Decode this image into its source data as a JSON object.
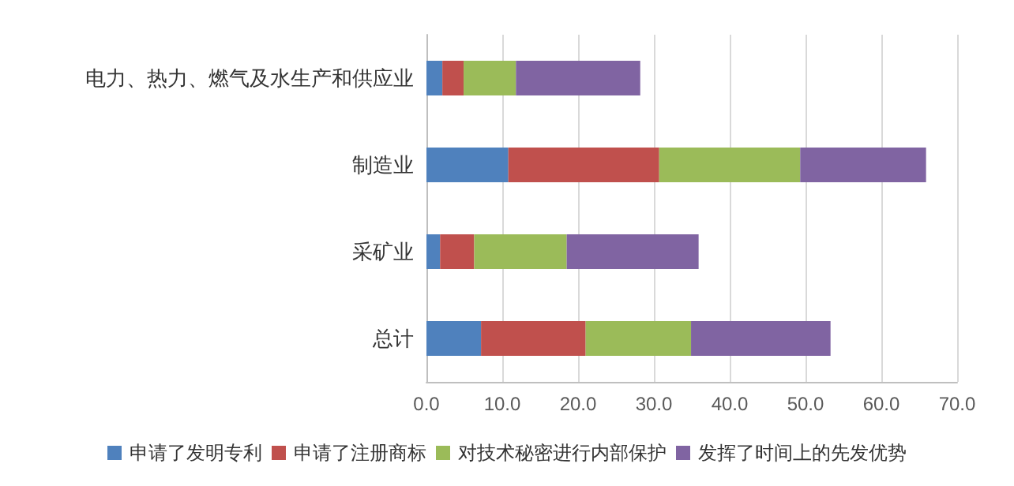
{
  "chart_data": {
    "type": "bar",
    "orientation": "horizontal",
    "stacked": true,
    "categories": [
      "电力、热力、燃气及水生产和供应业",
      "制造业",
      "采矿业",
      "总计"
    ],
    "series": [
      {
        "name": "申请了发明专利",
        "color": "#4f81bd",
        "values": [
          2.1,
          10.8,
          1.8,
          7.2
        ]
      },
      {
        "name": "申请了注册商标",
        "color": "#c0504d",
        "values": [
          2.8,
          19.9,
          4.5,
          13.8
        ]
      },
      {
        "name": "对技术秘密进行内部保护",
        "color": "#9bbb59",
        "values": [
          6.9,
          18.6,
          12.2,
          13.9
        ]
      },
      {
        "name": "发挥了时间上的先发优势",
        "color": "#8064a2",
        "values": [
          16.4,
          16.6,
          17.4,
          18.4
        ]
      }
    ],
    "xlim": [
      0,
      70
    ],
    "xticks": [
      {
        "value": 0,
        "label": "0.0"
      },
      {
        "value": 10,
        "label": "10.0"
      },
      {
        "value": 20,
        "label": "20.0"
      },
      {
        "value": 30,
        "label": "30.0"
      },
      {
        "value": 40,
        "label": "40.0"
      },
      {
        "value": 50,
        "label": "50.0"
      },
      {
        "value": 60,
        "label": "60.0"
      },
      {
        "value": 70,
        "label": "70.0"
      }
    ],
    "grid": "x",
    "legend": "bottom"
  }
}
